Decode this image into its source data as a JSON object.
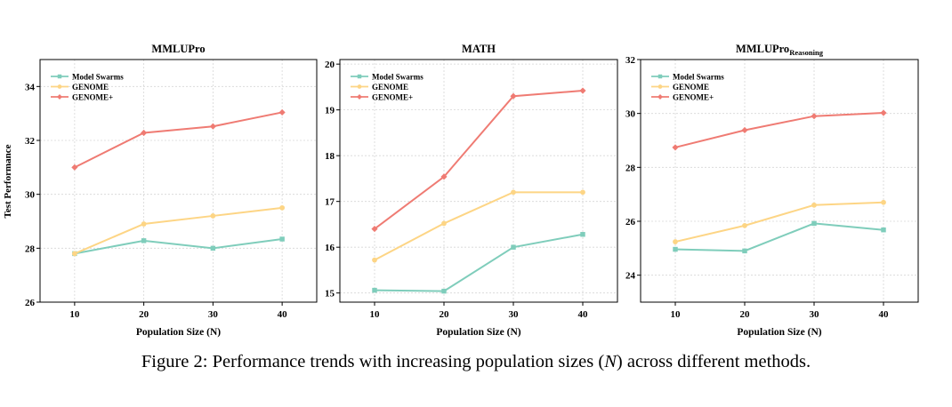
{
  "colors": {
    "model_swarms": "#7fcdbb",
    "genome": "#fdd585",
    "genome_plus": "#ef7b73",
    "grid": "#d6d6d6"
  },
  "y_axis_label": "Test Performance",
  "caption": {
    "before": "Figure 2: Performance trends with increasing population sizes (",
    "variable": "N",
    "after": ") across different methods."
  },
  "chart_data": [
    {
      "type": "line",
      "title": "MMLUPro",
      "title_subscript": "",
      "xlabel": "Population Size (N)",
      "x": [
        10,
        20,
        30,
        40
      ],
      "x_ticks": [
        "10",
        "20",
        "30",
        "40"
      ],
      "ylim": [
        26,
        35
      ],
      "y_ticks": [
        26,
        28,
        30,
        32,
        34
      ],
      "grid": true,
      "legend_position": "top-left",
      "series": [
        {
          "name": "Model Swarms",
          "color_key": "model_swarms",
          "marker": "square",
          "values": [
            27.8,
            28.28,
            28.0,
            28.34
          ]
        },
        {
          "name": "GENOME",
          "color_key": "genome",
          "marker": "circle",
          "values": [
            27.8,
            28.9,
            29.2,
            29.5
          ]
        },
        {
          "name": "GENOME+",
          "color_key": "genome_plus",
          "marker": "diamond",
          "values": [
            31.0,
            32.28,
            32.52,
            33.04
          ]
        }
      ]
    },
    {
      "type": "line",
      "title": "MATH",
      "title_subscript": "",
      "xlabel": "Population Size (N)",
      "x": [
        10,
        20,
        30,
        40
      ],
      "x_ticks": [
        "10",
        "20",
        "30",
        "40"
      ],
      "ylim": [
        14.8,
        20.1
      ],
      "y_ticks": [
        15,
        16,
        17,
        18,
        19,
        20
      ],
      "grid": true,
      "legend_position": "top-left",
      "series": [
        {
          "name": "Model Swarms",
          "color_key": "model_swarms",
          "marker": "square",
          "values": [
            15.06,
            15.04,
            16.0,
            16.28
          ]
        },
        {
          "name": "GENOME",
          "color_key": "genome",
          "marker": "circle",
          "values": [
            15.72,
            16.52,
            17.2,
            17.2
          ]
        },
        {
          "name": "GENOME+",
          "color_key": "genome_plus",
          "marker": "diamond",
          "values": [
            16.4,
            17.54,
            19.3,
            19.42
          ]
        }
      ]
    },
    {
      "type": "line",
      "title": "MMLUPro",
      "title_subscript": "Reasoning",
      "xlabel": "Population Size (N)",
      "x": [
        10,
        20,
        30,
        40
      ],
      "x_ticks": [
        "10",
        "20",
        "30",
        "40"
      ],
      "ylim": [
        23,
        32
      ],
      "y_ticks": [
        24,
        26,
        28,
        30,
        32
      ],
      "grid": true,
      "legend_position": "top-left",
      "series": [
        {
          "name": "Model Swarms",
          "color_key": "model_swarms",
          "marker": "square",
          "values": [
            24.96,
            24.9,
            25.92,
            25.68
          ]
        },
        {
          "name": "GENOME",
          "color_key": "genome",
          "marker": "circle",
          "values": [
            25.24,
            25.84,
            26.6,
            26.7
          ]
        },
        {
          "name": "GENOME+",
          "color_key": "genome_plus",
          "marker": "diamond",
          "values": [
            28.74,
            29.38,
            29.9,
            30.02
          ]
        }
      ]
    }
  ]
}
